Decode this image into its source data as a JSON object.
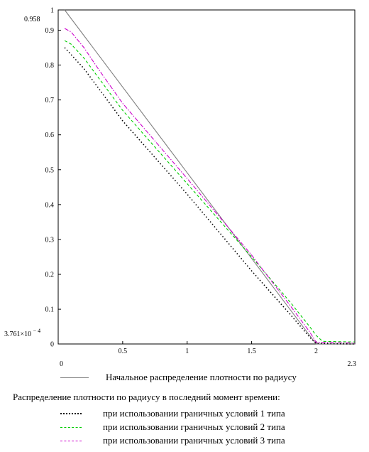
{
  "chart_data": {
    "type": "line",
    "xlim": [
      0,
      2.3
    ],
    "ylim": [
      0.0003761,
      0.958
    ],
    "x_range_labels": {
      "min": "0",
      "max": "2.3"
    },
    "y_range_labels": {
      "max": "0.958",
      "min_mantissa": "3.761×10",
      "min_exponent": "− 4"
    },
    "x_ticks": [
      {
        "value": 0.5,
        "label": "0.5"
      },
      {
        "value": 1.0,
        "label": "1"
      },
      {
        "value": 1.5,
        "label": "1.5"
      },
      {
        "value": 2.0,
        "label": "2"
      }
    ],
    "y_ticks": [
      {
        "value": 0.1,
        "label": "0.1"
      },
      {
        "value": 0.2,
        "label": "0.2"
      },
      {
        "value": 0.3,
        "label": "0.3"
      },
      {
        "value": 0.4,
        "label": "0.4"
      },
      {
        "value": 0.5,
        "label": "0.5"
      },
      {
        "value": 0.6,
        "label": "0.6"
      },
      {
        "value": 0.7,
        "label": "0.7"
      },
      {
        "value": 0.8,
        "label": "0.8"
      },
      {
        "value": 0.9,
        "label": "0.9"
      },
      {
        "value": 1.0,
        "label": "1"
      },
      {
        "value": 0.0,
        "label": "0"
      }
    ],
    "series": [
      {
        "name": "Начальное распределение плотности по радиусу",
        "color": "#808080",
        "dash": "solid",
        "x": [
          0.05,
          2.0,
          2.02,
          2.3
        ],
        "y": [
          0.958,
          0.0,
          0.0,
          0.0
        ]
      },
      {
        "name": "при использовании граничных условий 1 типа",
        "color": "#000000",
        "dash": "dotted",
        "x": [
          0.05,
          0.1,
          0.2,
          0.3,
          0.5,
          1.0,
          1.5,
          1.8,
          1.95,
          2.0,
          2.3
        ],
        "y": [
          0.85,
          0.83,
          0.79,
          0.74,
          0.64,
          0.43,
          0.21,
          0.085,
          0.02,
          0.002,
          0.0004
        ]
      },
      {
        "name": "при использовании граничных условий 2 типа",
        "color": "#00cc00",
        "dash": "dashed",
        "x": [
          0.05,
          0.1,
          0.2,
          0.3,
          0.5,
          1.0,
          1.5,
          1.8,
          1.95,
          2.0,
          2.05,
          2.3
        ],
        "y": [
          0.87,
          0.86,
          0.82,
          0.77,
          0.67,
          0.46,
          0.25,
          0.12,
          0.05,
          0.025,
          0.008,
          0.006
        ]
      },
      {
        "name": "при использовании граничных условий 3 типа",
        "color": "#cc00cc",
        "dash": "dashdot",
        "x": [
          0.05,
          0.1,
          0.2,
          0.3,
          0.5,
          1.0,
          1.5,
          1.8,
          1.95,
          2.0,
          2.3
        ],
        "y": [
          0.905,
          0.895,
          0.85,
          0.795,
          0.69,
          0.475,
          0.255,
          0.11,
          0.035,
          0.005,
          0.003
        ]
      }
    ]
  },
  "legend": {
    "initial_label": "Начальное распределение плотности по радиусу",
    "final_heading": "Распределение плотности по радиусу в последний момент времени:",
    "type1_label": "при использовании граничных условий 1 типа",
    "type2_label": "при использовании граничных условий 2 типа",
    "type3_label": "при использовании граничных условий 3 типа"
  }
}
